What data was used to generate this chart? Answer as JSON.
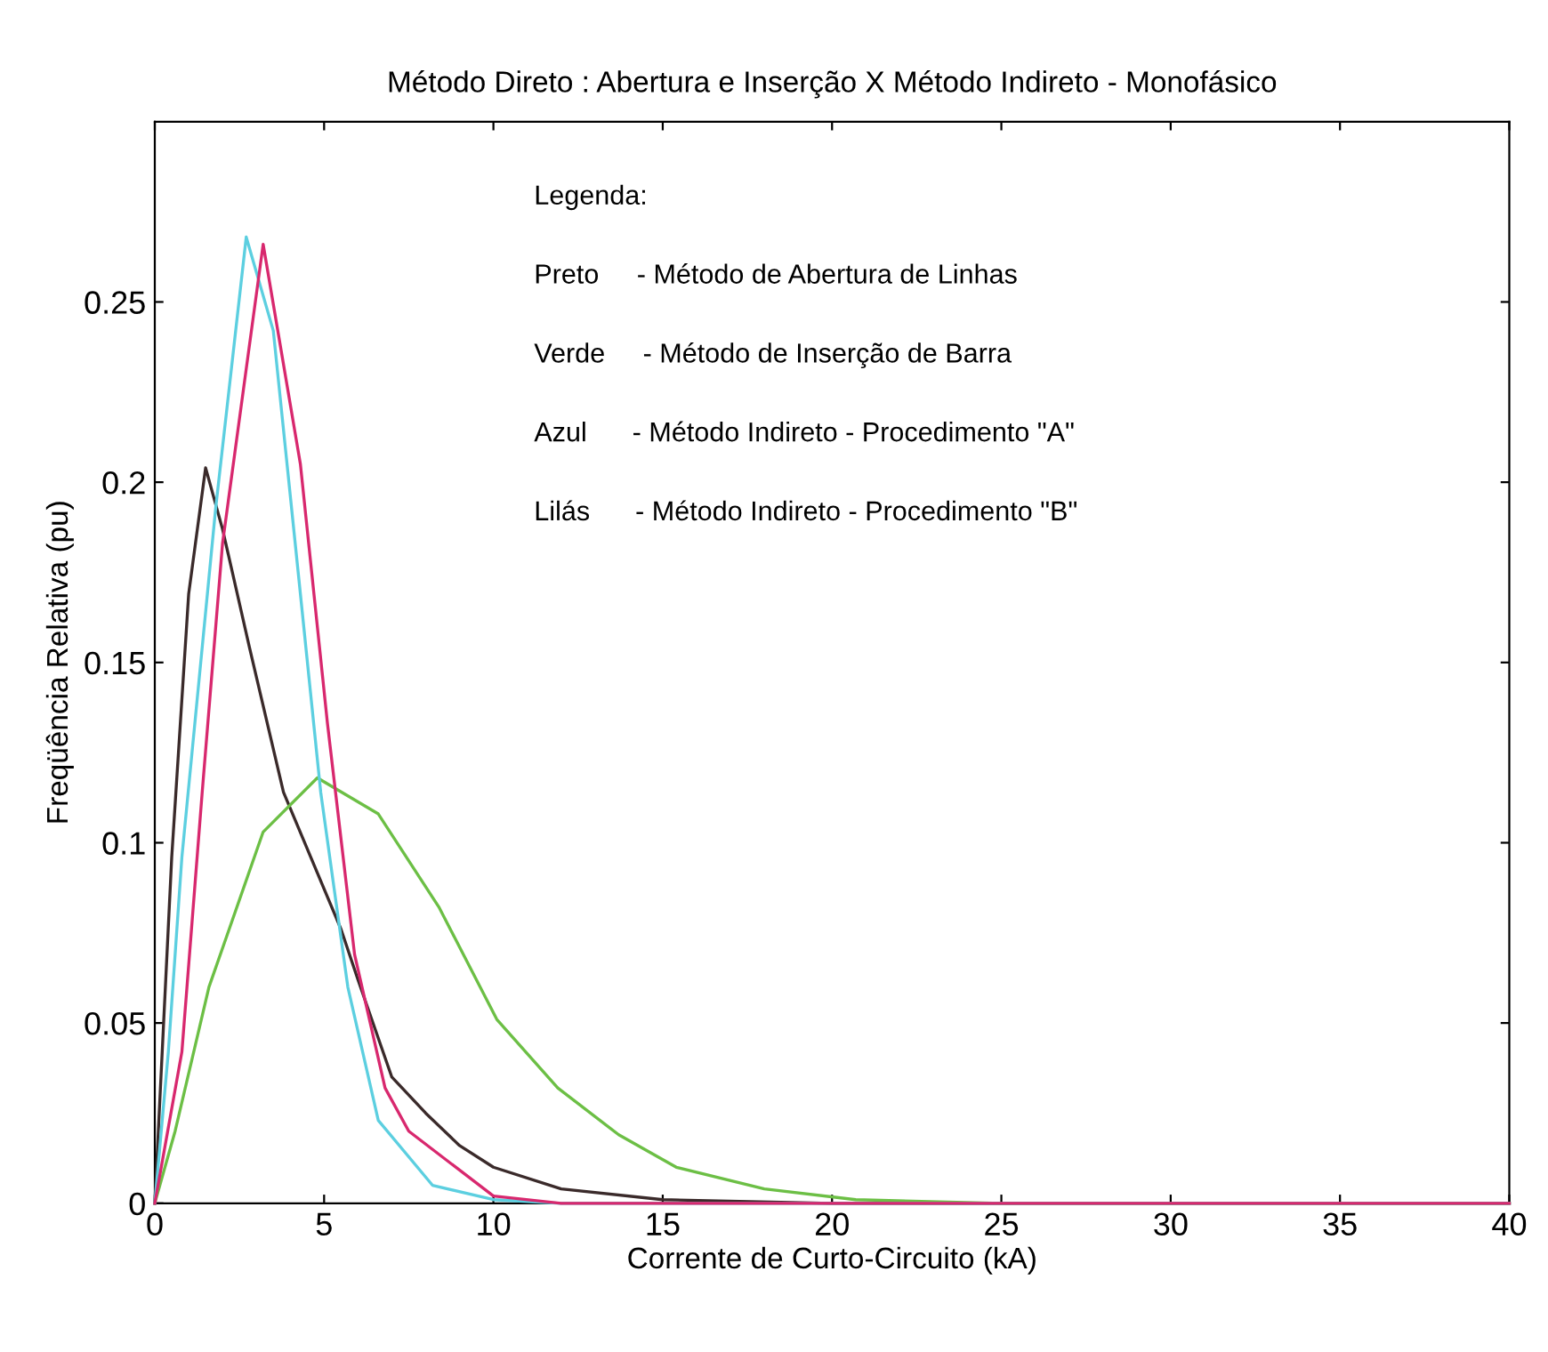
{
  "chart_data": {
    "type": "line",
    "title": "Método Direto : Abertura e Inserção X Método Indireto - Monofásico",
    "xlabel": "Corrente de Curto-Circuito (kA)",
    "ylabel": "Freqüência Relativa (pu)",
    "xlim": [
      0,
      40
    ],
    "ylim": [
      0,
      0.3
    ],
    "xticks": [
      0,
      5,
      10,
      15,
      20,
      25,
      30,
      35,
      40
    ],
    "yticks": [
      0,
      0.05,
      0.1,
      0.15,
      0.2,
      0.25
    ],
    "grid": false,
    "legend": false,
    "marker": "none",
    "line_style": "solid",
    "annotations": [
      "Legenda:",
      "Preto     - Método de Abertura de Linhas",
      "Verde     - Método de Inserção de Barra",
      "Azul      - Método Indireto - Procedimento \"A\"",
      "Lilás      - Método Indireto - Procedimento \"B\""
    ],
    "series": [
      {
        "color": "#3a2a2a",
        "x": [
          0,
          0.5,
          1,
          1.5,
          2,
          2.8,
          3.8,
          5.5,
          6,
          7,
          8,
          9,
          10,
          12,
          15,
          20,
          25,
          40
        ],
        "values": [
          0,
          0.096,
          0.169,
          0.204,
          0.187,
          0.154,
          0.114,
          0.076,
          0.062,
          0.035,
          0.025,
          0.016,
          0.01,
          0.004,
          0.001,
          0,
          0,
          0
        ]
      },
      {
        "color": "#6cbf45",
        "x": [
          0,
          0.6,
          1.6,
          3.2,
          4.8,
          6.6,
          8.4,
          10.1,
          11.9,
          13.7,
          15.4,
          18,
          20.7,
          25,
          40
        ],
        "values": [
          0,
          0.02,
          0.06,
          0.103,
          0.118,
          0.108,
          0.082,
          0.051,
          0.032,
          0.019,
          0.01,
          0.004,
          0.001,
          0,
          0
        ]
      },
      {
        "color": "#5ccfe0",
        "x": [
          0,
          0.4,
          0.8,
          1.8,
          2.7,
          3.5,
          4.3,
          4.9,
          5.7,
          6.6,
          8.2,
          10,
          12,
          40
        ],
        "values": [
          0,
          0.042,
          0.096,
          0.193,
          0.268,
          0.242,
          0.169,
          0.114,
          0.06,
          0.023,
          0.005,
          0.001,
          0,
          0
        ]
      },
      {
        "color": "#d8286e",
        "x": [
          0,
          0.8,
          1.4,
          2,
          3.2,
          4.3,
          5.1,
          5.9,
          6.8,
          7.5,
          10,
          12,
          40
        ],
        "values": [
          0,
          0.042,
          0.114,
          0.183,
          0.266,
          0.205,
          0.133,
          0.069,
          0.032,
          0.02,
          0.002,
          0,
          0
        ]
      }
    ]
  }
}
